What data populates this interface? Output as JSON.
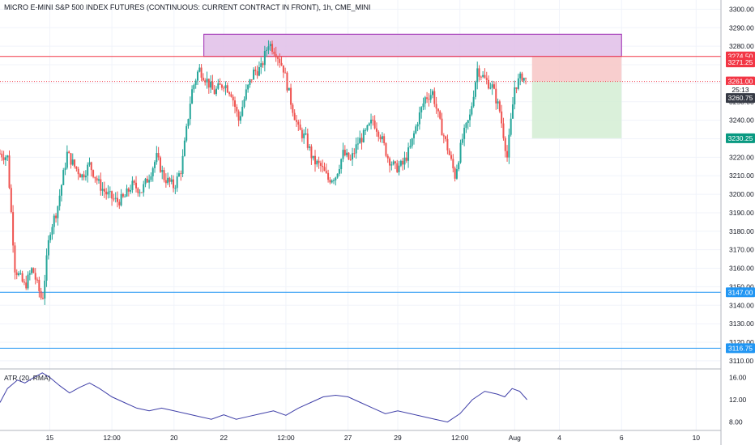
{
  "chart_data": {
    "type": "candlestick",
    "title": "MICRO E-MINI S&P 500 INDEX FUTURES (CONTINUOUS: CURRENT CONTRACT IN FRONT), 1h, CME_MINI",
    "price_axis": {
      "ylim": [
        3106,
        3305
      ],
      "ticks": [
        "3300.00",
        "3290.00",
        "3280.00",
        "3270.00",
        "3260.00",
        "3250.00",
        "3240.00",
        "3230.00",
        "3220.00",
        "3210.00",
        "3200.00",
        "3190.00",
        "3180.00",
        "3170.00",
        "3160.00",
        "3150.00",
        "3140.00",
        "3130.00",
        "3120.00",
        "3110.00"
      ]
    },
    "time_axis": {
      "xlim": [
        13,
        42
      ],
      "ticks": [
        {
          "t": 15,
          "label": "15"
        },
        {
          "t": 17.5,
          "label": "12:00"
        },
        {
          "t": 20,
          "label": "20"
        },
        {
          "t": 22,
          "label": "22"
        },
        {
          "t": 24.5,
          "label": "12:00"
        },
        {
          "t": 27,
          "label": "27"
        },
        {
          "t": 29,
          "label": "29"
        },
        {
          "t": 31.5,
          "label": "12:00"
        },
        {
          "t": 33.7,
          "label": "Aug"
        },
        {
          "t": 35.5,
          "label": "4"
        },
        {
          "t": 38,
          "label": "6"
        },
        {
          "t": 41,
          "label": "10"
        }
      ]
    },
    "price_series_path": [
      [
        13,
        3222
      ],
      [
        13.3,
        3220
      ],
      [
        13.6,
        3160
      ],
      [
        14,
        3150
      ],
      [
        14.3,
        3160
      ],
      [
        14.7,
        3142
      ],
      [
        15.0,
        3180
      ],
      [
        15.3,
        3192
      ],
      [
        15.7,
        3222
      ],
      [
        16,
        3215
      ],
      [
        16.3,
        3210
      ],
      [
        16.6,
        3216
      ],
      [
        17,
        3205
      ],
      [
        17.3,
        3200
      ],
      [
        17.7,
        3196
      ],
      [
        18,
        3198
      ],
      [
        18.3,
        3205
      ],
      [
        18.7,
        3202
      ],
      [
        19,
        3210
      ],
      [
        19.3,
        3220
      ],
      [
        19.6,
        3209
      ],
      [
        20,
        3204
      ],
      [
        20.3,
        3214
      ],
      [
        20.7,
        3255
      ],
      [
        21,
        3268
      ],
      [
        21.3,
        3262
      ],
      [
        21.6,
        3255
      ],
      [
        22,
        3260
      ],
      [
        22.3,
        3255
      ],
      [
        22.6,
        3240
      ],
      [
        22.9,
        3255
      ],
      [
        23.2,
        3266
      ],
      [
        23.5,
        3268
      ],
      [
        23.8,
        3282
      ],
      [
        24.1,
        3277
      ],
      [
        24.4,
        3268
      ],
      [
        24.7,
        3250
      ],
      [
        25,
        3235
      ],
      [
        25.3,
        3230
      ],
      [
        25.6,
        3218
      ],
      [
        25.9,
        3215
      ],
      [
        26.2,
        3208
      ],
      [
        26.5,
        3210
      ],
      [
        26.8,
        3222
      ],
      [
        27.1,
        3218
      ],
      [
        27.4,
        3228
      ],
      [
        27.7,
        3233
      ],
      [
        28,
        3240
      ],
      [
        28.3,
        3232
      ],
      [
        28.6,
        3220
      ],
      [
        28.9,
        3214
      ],
      [
        29.2,
        3216
      ],
      [
        29.5,
        3225
      ],
      [
        29.8,
        3240
      ],
      [
        30.1,
        3252
      ],
      [
        30.4,
        3255
      ],
      [
        30.7,
        3238
      ],
      [
        31,
        3225
      ],
      [
        31.3,
        3210
      ],
      [
        31.6,
        3230
      ],
      [
        31.9,
        3242
      ],
      [
        32.2,
        3268
      ],
      [
        32.5,
        3262
      ],
      [
        32.8,
        3258
      ],
      [
        33.1,
        3245
      ],
      [
        33.4,
        3220
      ],
      [
        33.7,
        3258
      ],
      [
        34.0,
        3264
      ],
      [
        34.2,
        3261
      ]
    ],
    "atr": {
      "name": "ATR (20, RMA)",
      "ylim": [
        6.5,
        17.5
      ],
      "ticks": [
        "16.00",
        "12.00",
        "8.00"
      ],
      "points": [
        [
          13,
          11.5
        ],
        [
          13.3,
          14
        ],
        [
          13.7,
          15.5
        ],
        [
          14,
          15
        ],
        [
          14.3,
          15.8
        ],
        [
          14.7,
          16.8
        ],
        [
          15,
          16
        ],
        [
          15.4,
          14.5
        ],
        [
          15.8,
          13.2
        ],
        [
          16.2,
          14.2
        ],
        [
          16.6,
          15
        ],
        [
          17,
          14
        ],
        [
          17.5,
          12.5
        ],
        [
          18,
          11.5
        ],
        [
          18.5,
          10.5
        ],
        [
          19,
          10
        ],
        [
          19.5,
          10.5
        ],
        [
          20,
          10
        ],
        [
          20.5,
          9.5
        ],
        [
          21,
          9
        ],
        [
          21.5,
          8.5
        ],
        [
          22,
          9.3
        ],
        [
          22.5,
          8.5
        ],
        [
          23,
          9
        ],
        [
          23.5,
          9.5
        ],
        [
          24,
          10
        ],
        [
          24.5,
          9.2
        ],
        [
          25,
          10.5
        ],
        [
          25.5,
          11.5
        ],
        [
          26,
          12.5
        ],
        [
          26.5,
          12.8
        ],
        [
          27,
          12.5
        ],
        [
          27.5,
          11.5
        ],
        [
          28,
          10.5
        ],
        [
          28.5,
          9.5
        ],
        [
          29,
          10
        ],
        [
          29.5,
          9.5
        ],
        [
          30,
          9
        ],
        [
          30.5,
          8.5
        ],
        [
          31,
          8
        ],
        [
          31.5,
          9.5
        ],
        [
          32,
          12
        ],
        [
          32.5,
          13.5
        ],
        [
          33,
          13
        ],
        [
          33.3,
          12.5
        ],
        [
          33.6,
          14
        ],
        [
          33.9,
          13.5
        ],
        [
          34.2,
          12
        ]
      ]
    },
    "zones": [
      {
        "name": "resistance-zone",
        "x0": 21.2,
        "x1": 38,
        "y0": 3274.5,
        "y1": 3286.5,
        "fill": "#e1bee7",
        "stroke": "#9c27b0"
      },
      {
        "name": "stop-zone",
        "x0": 34.4,
        "x1": 38,
        "y0": 3261.0,
        "y1": 3274.5,
        "fill": "#f7c6c6"
      },
      {
        "name": "target-zone",
        "x0": 34.4,
        "x1": 38,
        "y0": 3230.25,
        "y1": 3261.0,
        "fill": "#d3edd3"
      }
    ],
    "horizontal_lines": [
      {
        "name": "resistance-line",
        "y": 3274.5,
        "color": "#f23645",
        "dash": false
      },
      {
        "name": "last-price-line",
        "y": 3261.0,
        "color": "#f23645",
        "dash": true
      },
      {
        "name": "support-line-1",
        "y": 3147.0,
        "color": "#2196f3",
        "dash": false
      },
      {
        "name": "support-line-2",
        "y": 3116.75,
        "color": "#2196f3",
        "dash": false
      }
    ],
    "price_tags": [
      {
        "name": "tag-3274-50",
        "y": 3274.5,
        "text": "3274.50",
        "bg": "#f23645"
      },
      {
        "name": "tag-3271-25",
        "y": 3271.25,
        "text": "3271.25",
        "bg": "#f23645"
      },
      {
        "name": "tag-3261-00",
        "y": 3261.0,
        "text": "3261.00",
        "bg": "#f23645"
      },
      {
        "name": "tag-countdown",
        "y": 3256.5,
        "text": "25:13",
        "bg": "#ffffff",
        "fg": "#131722"
      },
      {
        "name": "tag-3260-75",
        "y": 3252.0,
        "text": "3260.75",
        "bg": "#363a45"
      },
      {
        "name": "tag-3230-25",
        "y": 3230.25,
        "text": "3230.25",
        "bg": "#089981"
      },
      {
        "name": "tag-3147-00",
        "y": 3147.0,
        "text": "3147.00",
        "bg": "#2196f3"
      },
      {
        "name": "tag-3116-75",
        "y": 3116.75,
        "text": "3116.75",
        "bg": "#2196f3"
      }
    ],
    "colors": {
      "up": "#26a69a",
      "down": "#ef5350",
      "atr": "#3f3fa8",
      "grid": "#f0f3fa",
      "axis_line": "#b2b5be"
    },
    "grid": true
  }
}
